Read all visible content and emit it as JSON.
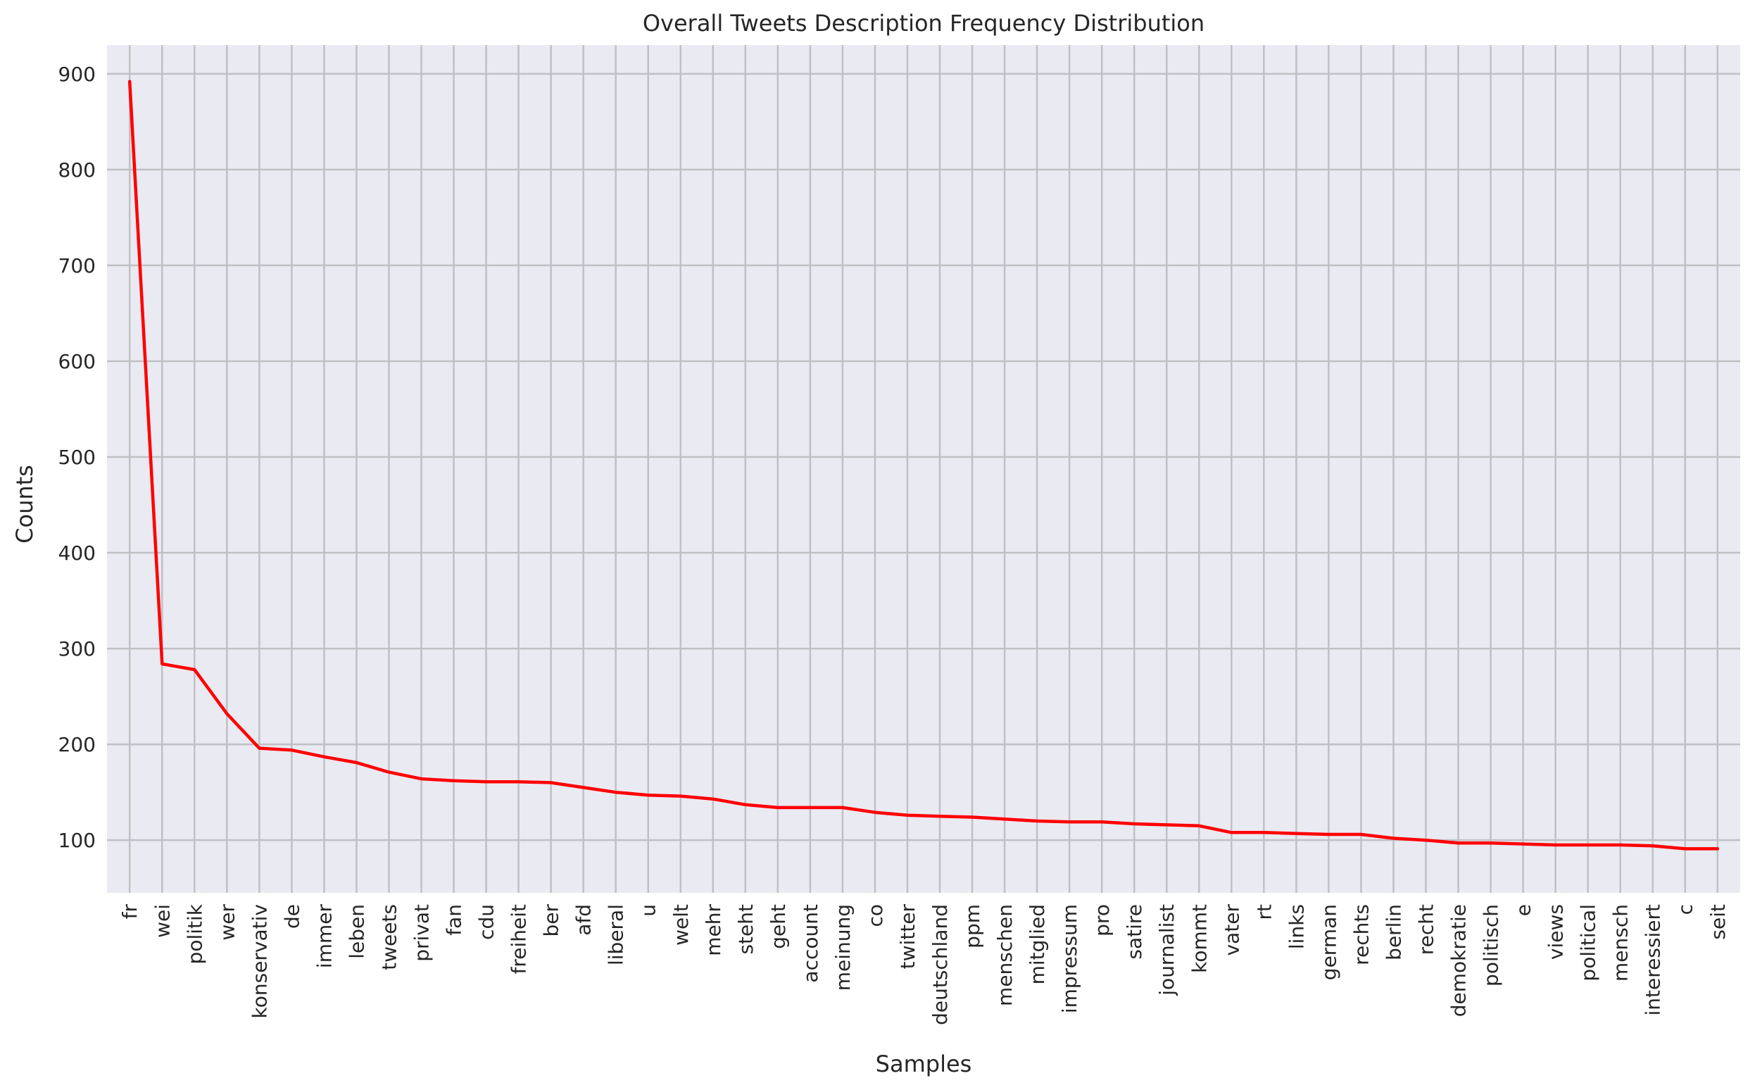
{
  "chart_data": {
    "type": "line",
    "title": "Overall Tweets Description Frequency Distribution",
    "xlabel": "Samples",
    "ylabel": "Counts",
    "ylim": [
      45,
      930
    ],
    "yticks": [
      100,
      200,
      300,
      400,
      500,
      600,
      700,
      800,
      900
    ],
    "grid": true,
    "colors": {
      "background": "#eaeaf2",
      "grid": "#c0c0c4",
      "line": "#ff0000",
      "text": "#262626"
    },
    "categories": [
      "fr",
      "wei",
      "politik",
      "wer",
      "konservativ",
      "de",
      "immer",
      "leben",
      "tweets",
      "privat",
      "fan",
      "cdu",
      "freiheit",
      "ber",
      "afd",
      "liberal",
      "u",
      "welt",
      "mehr",
      "steht",
      "geht",
      "account",
      "meinung",
      "co",
      "twitter",
      "deutschland",
      "ppm",
      "menschen",
      "mitglied",
      "impressum",
      "pro",
      "satire",
      "journalist",
      "kommt",
      "vater",
      "rt",
      "links",
      "german",
      "rechts",
      "berlin",
      "recht",
      "demokratie",
      "politisch",
      "e",
      "views",
      "political",
      "mensch",
      "interessiert",
      "c",
      "seit"
    ],
    "series": [
      {
        "values": [
          892,
          284,
          278,
          232,
          196,
          194,
          187,
          181,
          171,
          164,
          162,
          161,
          161,
          160,
          155,
          150,
          147,
          146,
          143,
          137,
          134,
          134,
          134,
          129,
          126,
          125,
          124,
          122,
          120,
          119,
          119,
          117,
          116,
          115,
          108,
          108,
          107,
          106,
          106,
          102,
          100,
          97,
          97,
          96,
          95,
          95,
          95,
          94,
          91,
          91
        ]
      }
    ]
  }
}
